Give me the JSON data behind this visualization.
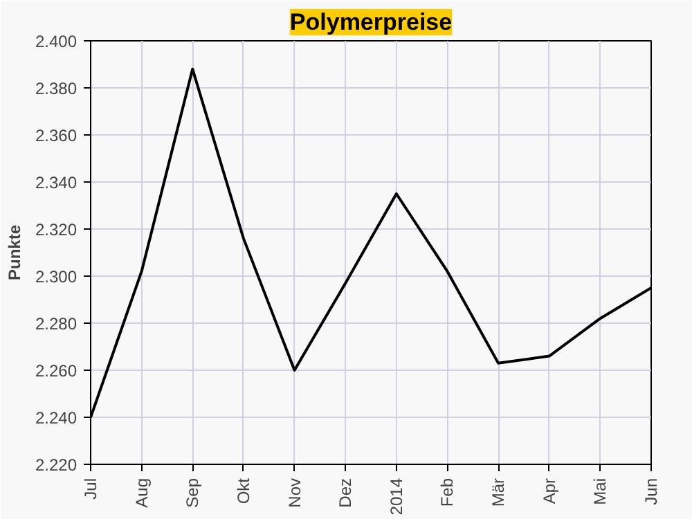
{
  "chart_data": {
    "type": "line",
    "title": "Polymerpreise",
    "ylabel": "Punkte",
    "categories": [
      "Jul",
      "Aug",
      "Sep",
      "Okt",
      "Nov",
      "Dez",
      "2014",
      "Feb",
      "Mär",
      "Apr",
      "Mai",
      "Jun"
    ],
    "series": [
      {
        "color": "#000000",
        "values": [
          2240,
          2302,
          2388,
          2316,
          2260,
          2297,
          2335,
          2302,
          2263,
          2266,
          2282,
          2295
        ]
      }
    ],
    "ylim": [
      2220,
      2400
    ],
    "yticks": [
      {
        "value": 2220,
        "label": "2.220"
      },
      {
        "value": 2240,
        "label": "2.240"
      },
      {
        "value": 2260,
        "label": "2.260"
      },
      {
        "value": 2280,
        "label": "2.280"
      },
      {
        "value": 2300,
        "label": "2.300"
      },
      {
        "value": 2320,
        "label": "2.320"
      },
      {
        "value": 2340,
        "label": "2.340"
      },
      {
        "value": 2360,
        "label": "2.360"
      },
      {
        "value": 2380,
        "label": "2.380"
      },
      {
        "value": 2400,
        "label": "2.400"
      }
    ],
    "grid": true,
    "marker": "none",
    "line_style": "solid"
  }
}
